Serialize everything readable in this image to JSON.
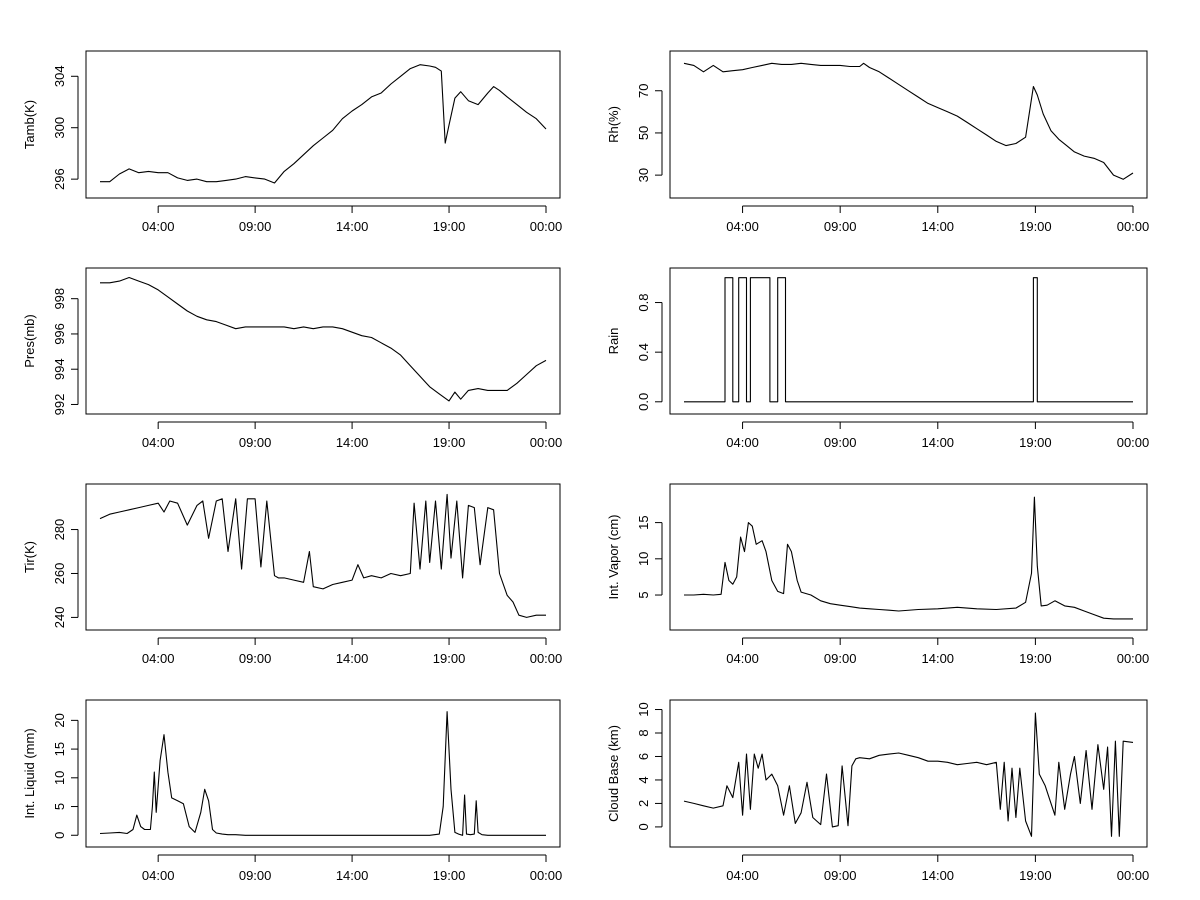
{
  "chart_data": [
    {
      "type": "line",
      "ylabel": "Tamb(K)",
      "xticks": [
        "04:00",
        "09:00",
        "14:00",
        "19:00",
        "00:00"
      ],
      "xlim": [
        1,
        24
      ],
      "ylim": [
        295,
        305.5
      ],
      "yticks": [
        296,
        300,
        304
      ],
      "x": [
        1,
        1.5,
        2,
        2.5,
        3,
        3.5,
        4,
        4.5,
        5,
        5.5,
        6,
        6.5,
        7,
        7.5,
        8,
        8.5,
        9,
        9.5,
        10,
        10.5,
        11,
        11.5,
        12,
        12.5,
        13,
        13.5,
        14,
        14.5,
        15,
        15.5,
        16,
        16.5,
        17,
        17.5,
        18,
        18.3,
        18.6,
        18.8,
        19,
        19.3,
        19.6,
        20,
        20.5,
        21,
        21.3,
        21.6,
        22,
        22.5,
        23,
        23.5,
        24
      ],
      "values": [
        295.8,
        295.8,
        296.4,
        296.8,
        296.5,
        296.6,
        296.5,
        296.5,
        296.1,
        295.9,
        296.0,
        295.8,
        295.8,
        295.9,
        296.0,
        296.2,
        296.1,
        296.0,
        295.7,
        296.6,
        297.2,
        297.9,
        298.6,
        299.2,
        299.8,
        300.7,
        301.3,
        301.8,
        302.4,
        302.7,
        303.4,
        304.0,
        304.6,
        304.9,
        304.8,
        304.7,
        304.4,
        298.8,
        300.2,
        302.3,
        302.8,
        302.1,
        301.8,
        302.7,
        303.2,
        302.9,
        302.4,
        301.8,
        301.2,
        300.7,
        299.9
      ]
    },
    {
      "type": "line",
      "ylabel": "Rh(%)",
      "xticks": [
        "04:00",
        "09:00",
        "14:00",
        "19:00",
        "00:00"
      ],
      "xlim": [
        1,
        24
      ],
      "ylim": [
        22,
        86
      ],
      "yticks": [
        30,
        50,
        70
      ],
      "x": [
        1,
        1.5,
        2,
        2.5,
        3,
        3.5,
        4,
        4.5,
        5,
        5.5,
        6,
        6.5,
        7,
        7.5,
        8,
        8.5,
        9,
        9.5,
        10,
        10.2,
        10.5,
        11,
        11.5,
        12,
        12.5,
        13,
        13.5,
        14,
        14.5,
        15,
        15.5,
        16,
        16.5,
        17,
        17.5,
        18,
        18.5,
        18.9,
        19.1,
        19.4,
        19.8,
        20.2,
        20.6,
        21,
        21.5,
        22,
        22.5,
        23,
        23.5,
        24
      ],
      "values": [
        83,
        82,
        79,
        82,
        79,
        79.5,
        80,
        81,
        82,
        83,
        82.5,
        82.5,
        83,
        82.5,
        82,
        82,
        82,
        81.5,
        81.5,
        83,
        81,
        79,
        76,
        73,
        70,
        67,
        64,
        62,
        60,
        58,
        55,
        52,
        49,
        46,
        44,
        45,
        48,
        72,
        68,
        59,
        51,
        47,
        44,
        41,
        39,
        38,
        36,
        30,
        28,
        31
      ]
    },
    {
      "type": "line",
      "ylabel": "Pres(mb)",
      "xticks": [
        "04:00",
        "09:00",
        "14:00",
        "19:00",
        "00:00"
      ],
      "xlim": [
        1,
        24
      ],
      "ylim": [
        991.8,
        999.4
      ],
      "yticks": [
        992,
        994,
        996,
        998
      ],
      "x": [
        1,
        1.5,
        2,
        2.5,
        3,
        3.5,
        4,
        4.5,
        5,
        5.5,
        6,
        6.5,
        7,
        7.5,
        8,
        8.5,
        9,
        9.5,
        10,
        10.5,
        11,
        11.5,
        12,
        12.5,
        13,
        13.5,
        14,
        14.5,
        15,
        15.5,
        16,
        16.5,
        17,
        17.5,
        18,
        18.5,
        19,
        19.3,
        19.6,
        20,
        20.5,
        21,
        21.5,
        22,
        22.5,
        23,
        23.5,
        24
      ],
      "values": [
        998.9,
        998.9,
        999.0,
        999.2,
        999.0,
        998.8,
        998.5,
        998.1,
        997.7,
        997.3,
        997.0,
        996.8,
        996.7,
        996.5,
        996.3,
        996.4,
        996.4,
        996.4,
        996.4,
        996.4,
        996.3,
        996.4,
        996.3,
        996.4,
        996.4,
        996.3,
        996.1,
        995.9,
        995.8,
        995.5,
        995.2,
        994.8,
        994.2,
        993.6,
        993.0,
        992.6,
        992.2,
        992.7,
        992.3,
        992.8,
        992.9,
        992.8,
        992.8,
        992.8,
        993.2,
        993.7,
        994.2,
        994.5
      ]
    },
    {
      "type": "line",
      "ylabel": "Rain",
      "xticks": [
        "04:00",
        "09:00",
        "14:00",
        "19:00",
        "00:00"
      ],
      "xlim": [
        1,
        24
      ],
      "ylim": [
        -0.05,
        1.03
      ],
      "yticks": [
        0.0,
        0.4,
        0.8
      ],
      "ytick_labels": [
        "0.0",
        "0.4",
        "0.8"
      ],
      "x": [
        1,
        3.1,
        3.1,
        3.5,
        3.5,
        3.8,
        3.8,
        4.2,
        4.2,
        4.4,
        4.4,
        4.5,
        4.5,
        5.4,
        5.4,
        5.8,
        5.8,
        6.2,
        6.2,
        18.9,
        18.9,
        19.1,
        19.1,
        24
      ],
      "values": [
        0,
        0,
        1,
        1,
        0,
        0,
        1,
        1,
        0,
        0,
        1,
        1,
        1,
        1,
        0,
        0,
        1,
        1,
        0,
        0,
        1,
        1,
        0,
        0
      ]
    },
    {
      "type": "line",
      "ylabel": "Tir(K)",
      "xticks": [
        "04:00",
        "09:00",
        "14:00",
        "19:00",
        "00:00"
      ],
      "xlim": [
        1,
        24
      ],
      "ylim": [
        237,
        298
      ],
      "yticks": [
        240,
        260,
        280
      ],
      "x": [
        1,
        1.5,
        2,
        2.5,
        3,
        3.5,
        4,
        4.3,
        4.6,
        5,
        5.5,
        6,
        6.3,
        6.6,
        7,
        7.3,
        7.6,
        8,
        8.3,
        8.6,
        9,
        9.3,
        9.6,
        10,
        10.2,
        10.5,
        11,
        11.5,
        11.8,
        12,
        12.5,
        13,
        13.5,
        14,
        14.3,
        14.6,
        15,
        15.5,
        16,
        16.5,
        17,
        17.2,
        17.5,
        17.8,
        18,
        18.3,
        18.6,
        18.9,
        19.1,
        19.4,
        19.7,
        20,
        20.3,
        20.6,
        21,
        21.3,
        21.6,
        22,
        22.3,
        22.6,
        23,
        23.5,
        24
      ],
      "values": [
        285,
        287,
        288,
        289,
        290,
        291,
        292,
        288,
        293,
        292,
        282,
        291,
        293,
        276,
        293,
        294,
        270,
        294,
        262,
        294,
        294,
        263,
        293,
        259,
        258,
        258,
        257,
        256,
        270,
        254,
        253,
        255,
        256,
        257,
        264,
        258,
        259,
        258,
        260,
        259,
        260,
        292,
        262,
        293,
        265,
        293,
        262,
        296,
        267,
        293,
        258,
        291,
        290,
        264,
        290,
        289,
        260,
        250,
        247,
        241,
        240,
        241,
        241
      ]
    },
    {
      "type": "line",
      "ylabel": "Int. Vapor (cm)",
      "xticks": [
        "04:00",
        "09:00",
        "14:00",
        "19:00",
        "00:00"
      ],
      "xlim": [
        1,
        24
      ],
      "ylim": [
        1,
        19.5
      ],
      "yticks": [
        5,
        10,
        15
      ],
      "x": [
        1,
        1.5,
        2,
        2.5,
        2.9,
        3.1,
        3.3,
        3.5,
        3.7,
        3.9,
        4.1,
        4.3,
        4.5,
        4.7,
        5.0,
        5.2,
        5.5,
        5.8,
        6.1,
        6.3,
        6.5,
        6.8,
        7.0,
        7.5,
        8,
        8.5,
        9,
        9.5,
        10,
        10.5,
        11,
        11.5,
        12,
        13,
        14,
        15,
        16,
        17,
        18,
        18.5,
        18.8,
        18.95,
        19.1,
        19.3,
        19.6,
        20,
        20.5,
        21,
        21.5,
        22,
        22.5,
        23,
        23.5,
        24
      ],
      "values": [
        5,
        5,
        5.1,
        5,
        5.1,
        9.5,
        7,
        6.5,
        7.5,
        13,
        11,
        15,
        14.5,
        12,
        12.5,
        11,
        7,
        5.5,
        5.2,
        12,
        11,
        7,
        5.4,
        5,
        4.2,
        3.8,
        3.6,
        3.4,
        3.2,
        3.1,
        3,
        2.9,
        2.8,
        3,
        3.1,
        3.3,
        3.1,
        3,
        3.2,
        4,
        8,
        18.5,
        9,
        3.5,
        3.6,
        4.2,
        3.5,
        3.3,
        2.8,
        2.3,
        1.8,
        1.7,
        1.7,
        1.7
      ]
    },
    {
      "type": "line",
      "ylabel": "Int. Liquid (mm)",
      "xticks": [
        "04:00",
        "09:00",
        "14:00",
        "19:00",
        "00:00"
      ],
      "xlim": [
        1,
        24
      ],
      "ylim": [
        -1,
        22.5
      ],
      "yticks": [
        0,
        5,
        10,
        15,
        20
      ],
      "x": [
        1,
        1.5,
        2,
        2.4,
        2.7,
        2.9,
        3.1,
        3.3,
        3.6,
        3.7,
        3.8,
        3.9,
        4.1,
        4.3,
        4.5,
        4.7,
        5.0,
        5.3,
        5.6,
        5.9,
        6.2,
        6.4,
        6.6,
        6.8,
        7.0,
        7.3,
        7.6,
        8,
        8.5,
        9,
        10,
        12,
        14,
        16,
        18,
        18.5,
        18.7,
        18.9,
        19.1,
        19.3,
        19.5,
        19.7,
        19.8,
        19.9,
        20.1,
        20.3,
        20.4,
        20.5,
        20.7,
        21,
        22,
        23,
        24
      ],
      "values": [
        0.3,
        0.4,
        0.5,
        0.3,
        1,
        3.5,
        1.5,
        1,
        1,
        5,
        11,
        4,
        13,
        17.5,
        11,
        6.5,
        6,
        5.5,
        1.5,
        0.5,
        4,
        8,
        6,
        1,
        0.4,
        0.2,
        0.1,
        0.1,
        0,
        0,
        0,
        0,
        0,
        0,
        0,
        0.2,
        5,
        21.5,
        8,
        0.5,
        0.2,
        0,
        7,
        0.2,
        0.1,
        0.2,
        6,
        0.5,
        0.1,
        0,
        0,
        0,
        0
      ]
    },
    {
      "type": "line",
      "ylabel": "Cloud Base (km)",
      "xticks": [
        "04:00",
        "09:00",
        "14:00",
        "19:00",
        "00:00"
      ],
      "xlim": [
        1,
        24
      ],
      "ylim": [
        -1.2,
        10.3
      ],
      "yticks": [
        0,
        2,
        4,
        6,
        8,
        10
      ],
      "x": [
        1,
        1.5,
        2,
        2.5,
        3,
        3.2,
        3.5,
        3.8,
        4,
        4.2,
        4.4,
        4.6,
        4.8,
        5,
        5.2,
        5.5,
        5.8,
        6.1,
        6.4,
        6.7,
        7,
        7.3,
        7.6,
        8,
        8.3,
        8.6,
        8.9,
        9.1,
        9.4,
        9.6,
        9.8,
        10,
        10.5,
        11,
        11.5,
        12,
        12.5,
        13,
        13.5,
        14,
        14.5,
        15,
        15.5,
        16,
        16.5,
        17,
        17.2,
        17.4,
        17.6,
        17.8,
        18,
        18.2,
        18.5,
        18.8,
        19,
        19.2,
        19.5,
        19.8,
        20,
        20.2,
        20.5,
        20.8,
        21,
        21.3,
        21.6,
        21.9,
        22.2,
        22.5,
        22.7,
        22.9,
        23.1,
        23.3,
        23.5,
        24
      ],
      "values": [
        2.2,
        2,
        1.8,
        1.6,
        1.8,
        3.5,
        2.5,
        5.5,
        1,
        6.2,
        1.5,
        6.2,
        5,
        6.2,
        4,
        4.5,
        3.5,
        1,
        3.5,
        0.3,
        1.2,
        3.8,
        0.8,
        0.2,
        4.5,
        0,
        0.1,
        5.2,
        0.1,
        5.2,
        5.8,
        5.9,
        5.8,
        6.1,
        6.2,
        6.3,
        6.1,
        5.9,
        5.6,
        5.6,
        5.5,
        5.3,
        5.4,
        5.5,
        5.3,
        5.5,
        1.5,
        5.5,
        0.5,
        5,
        0.8,
        5,
        0.5,
        -0.8,
        9.7,
        4.5,
        3.5,
        2,
        1,
        5.5,
        1.5,
        4.5,
        6,
        2,
        6.5,
        1.5,
        7,
        3.2,
        6.8,
        -0.8,
        7.3,
        -0.8,
        7.3,
        7.2
      ]
    }
  ]
}
